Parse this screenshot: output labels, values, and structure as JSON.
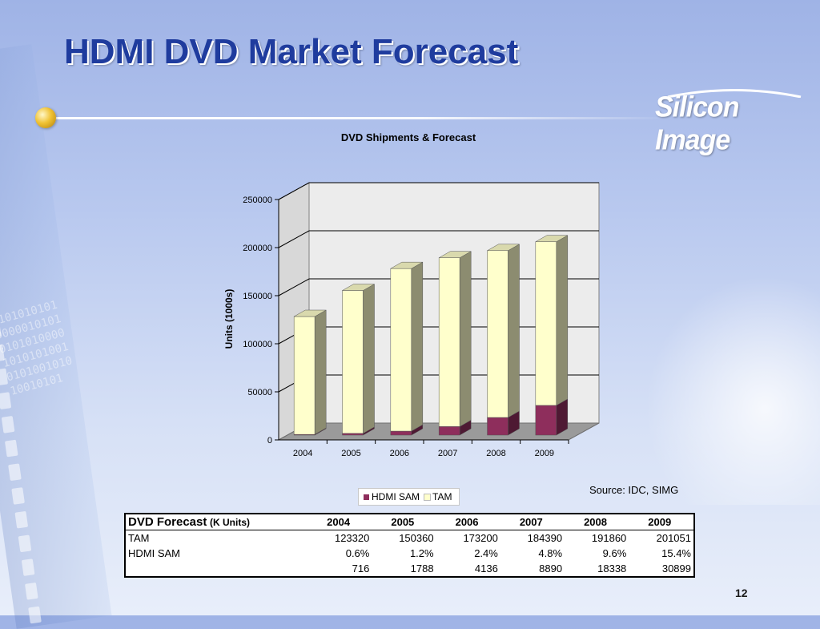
{
  "slide": {
    "title": "HDMI DVD Market Forecast",
    "logo_text": "Silicon Image",
    "page_number": "12",
    "source_note": "Source: IDC, SIMG",
    "decor_binary": "0101010101000001010101010100001010101001010100101010010101"
  },
  "chart_data": {
    "type": "bar",
    "stacked": true,
    "style": "3d",
    "title": "DVD Shipments & Forecast",
    "xlabel": "",
    "ylabel": "Units (1000s)",
    "categories": [
      "2004",
      "2005",
      "2006",
      "2007",
      "2008",
      "2009"
    ],
    "ylim": [
      0,
      250000
    ],
    "yticks": [
      "0",
      "50000",
      "100000",
      "150000",
      "200000",
      "250000"
    ],
    "legend_placement": "bottom",
    "grid": true,
    "series": [
      {
        "name": "HDMI SAM",
        "color": "#8e2e5c",
        "values": [
          716,
          1788,
          4136,
          8890,
          18338,
          30899
        ]
      },
      {
        "name": "TAM",
        "color": "#ffffcc",
        "values": [
          122604,
          148572,
          169064,
          175500,
          173522,
          170152
        ]
      }
    ]
  },
  "table": {
    "heading": "DVD Forecast",
    "heading_unit": "(K Units)",
    "years": [
      "2004",
      "2005",
      "2006",
      "2007",
      "2008",
      "2009"
    ],
    "rows": [
      {
        "label": "TAM",
        "values": [
          "123320",
          "150360",
          "173200",
          "184390",
          "191860",
          "201051"
        ]
      },
      {
        "label": "HDMI SAM",
        "values": [
          "0.6%",
          "1.2%",
          "2.4%",
          "4.8%",
          "9.6%",
          "15.4%"
        ]
      },
      {
        "label": "",
        "values": [
          "716",
          "1788",
          "4136",
          "8890",
          "18338",
          "30899"
        ]
      }
    ]
  }
}
